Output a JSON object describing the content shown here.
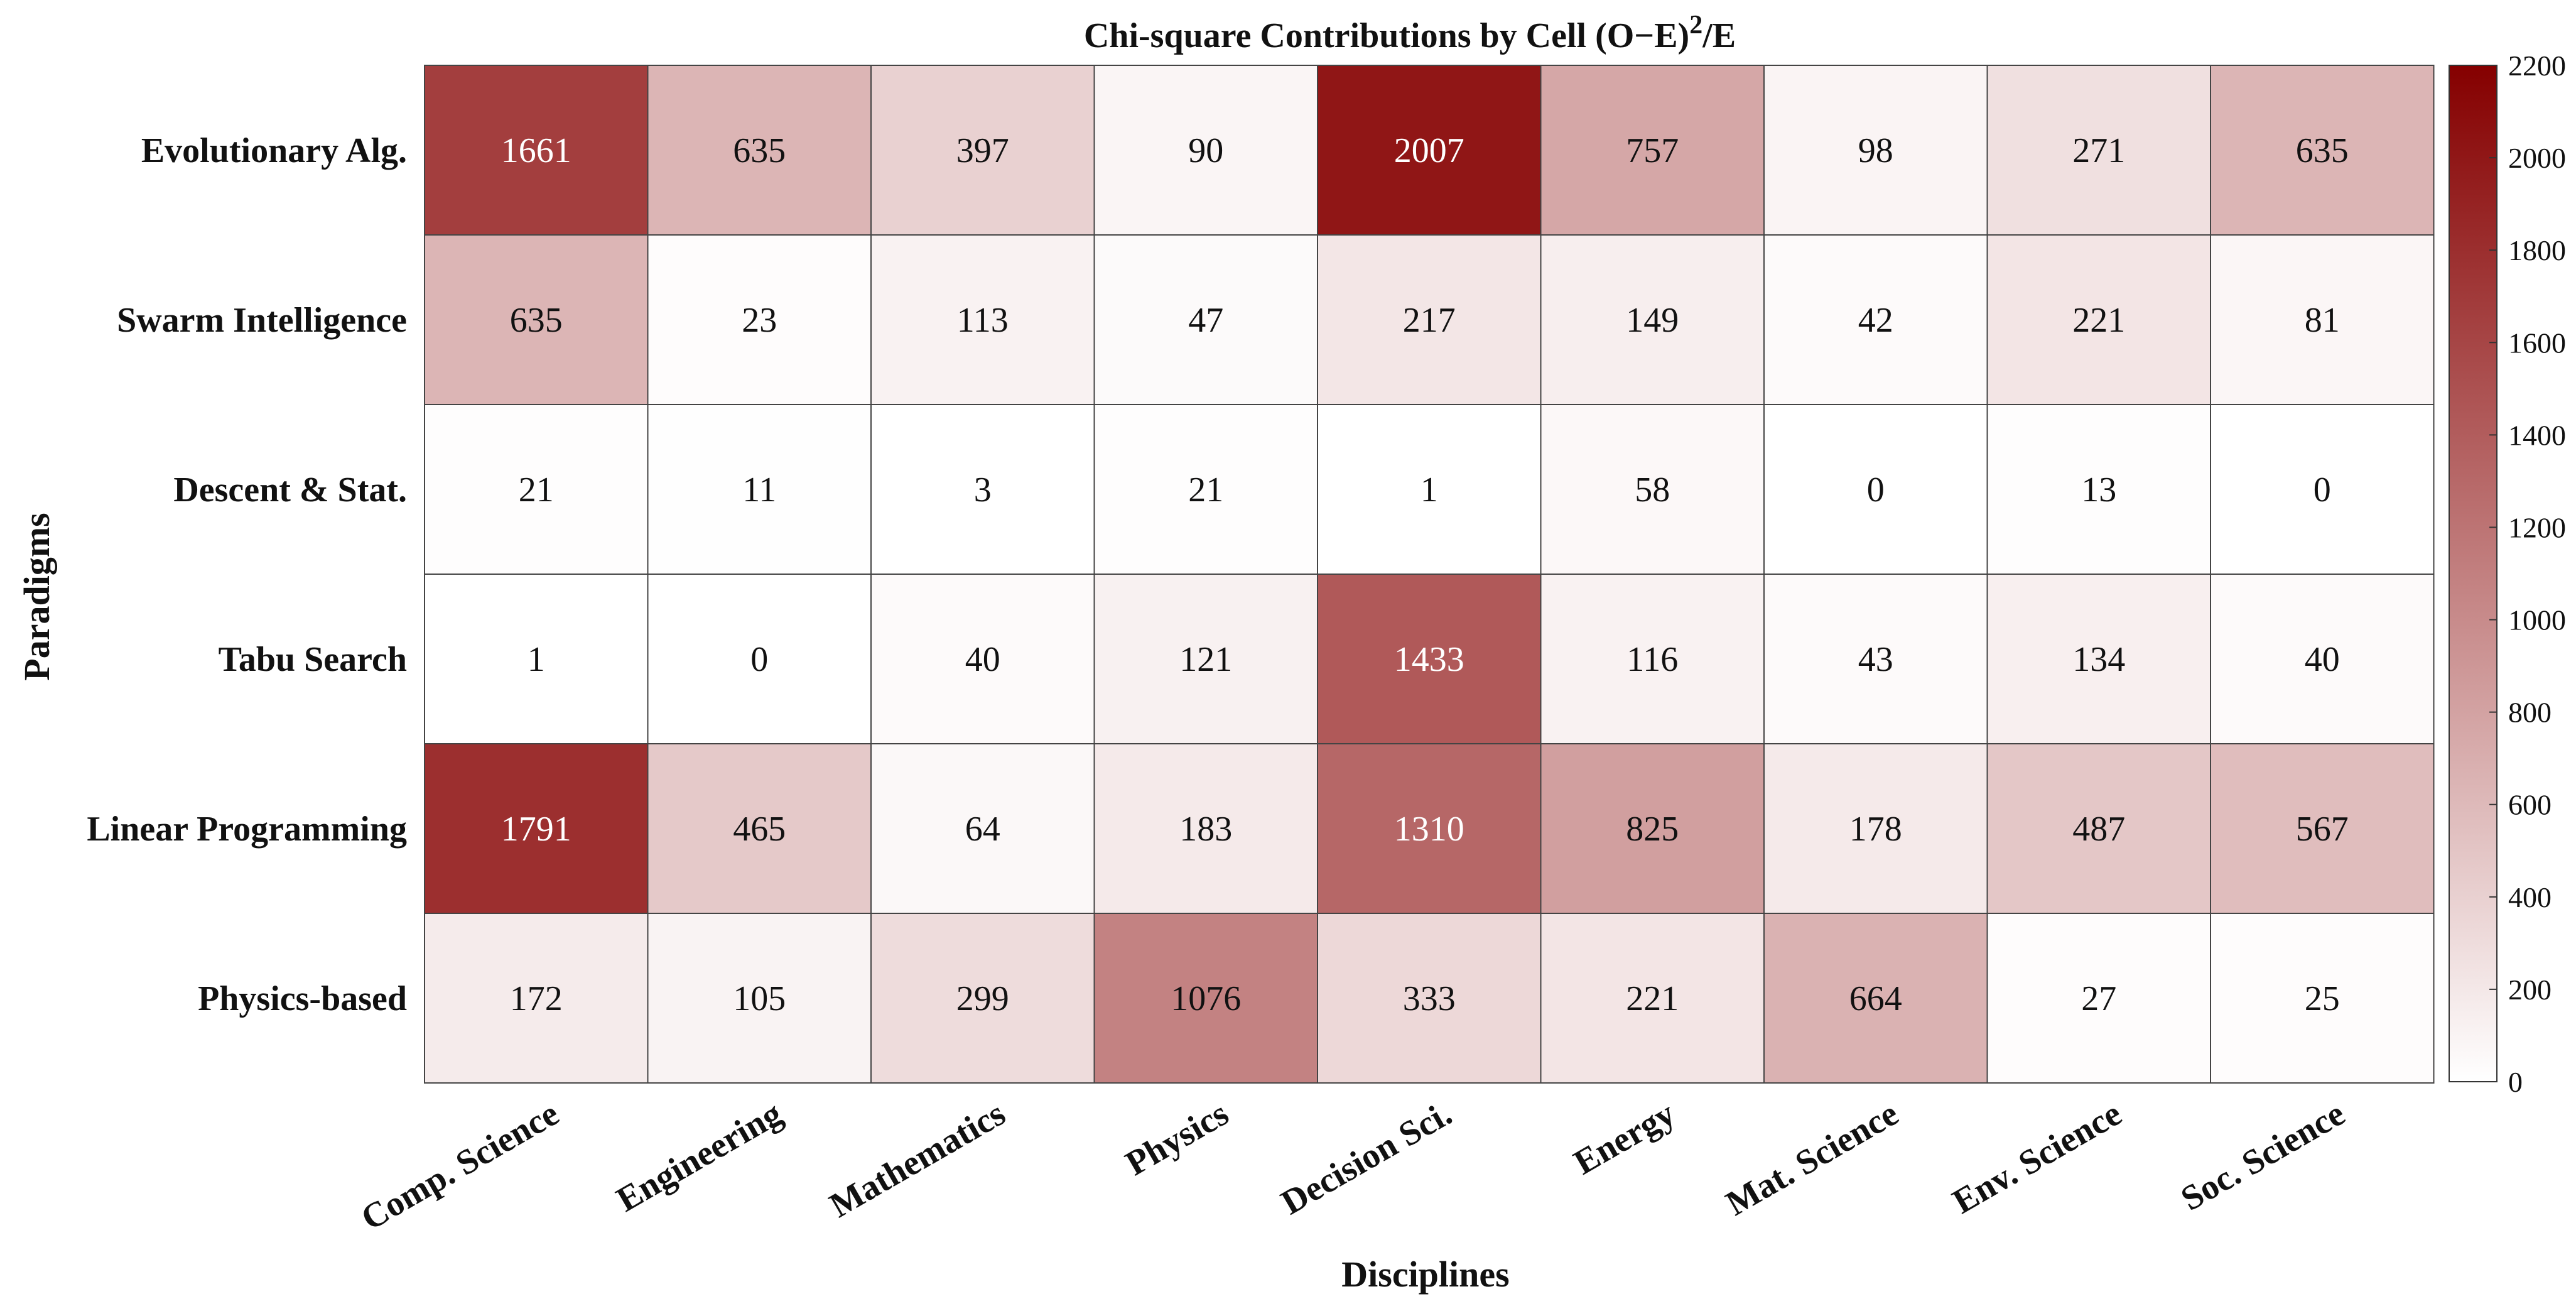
{
  "chart_data": {
    "type": "heatmap",
    "title": "Chi-square Contributions by Cell (O−E)",
    "title_superscript": "2",
    "title_suffix": "/E",
    "xlabel": "Disciplines",
    "ylabel": "Paradigms",
    "rows": [
      "Evolutionary Alg.",
      "Swarm Intelligence",
      "Descent & Stat.",
      "Tabu Search",
      "Linear Programming",
      "Physics-based"
    ],
    "columns": [
      "Comp. Science",
      "Engineering",
      "Mathematics",
      "Physics",
      "Decision Sci.",
      "Energy",
      "Mat. Science",
      "Env. Science",
      "Soc. Science"
    ],
    "values": [
      [
        1661,
        635,
        397,
        90,
        2007,
        757,
        98,
        271,
        635
      ],
      [
        635,
        23,
        113,
        47,
        217,
        149,
        42,
        221,
        81
      ],
      [
        21,
        11,
        3,
        21,
        1,
        58,
        0,
        13,
        0
      ],
      [
        1,
        0,
        40,
        121,
        1433,
        116,
        43,
        134,
        40
      ],
      [
        1791,
        465,
        64,
        183,
        1310,
        825,
        178,
        487,
        567
      ],
      [
        172,
        105,
        299,
        1076,
        333,
        221,
        664,
        27,
        25
      ]
    ],
    "colorbar": {
      "min": 0,
      "max": 2200,
      "ticks": [
        0,
        200,
        400,
        600,
        800,
        1000,
        1200,
        1400,
        1600,
        1800,
        2000,
        2200
      ],
      "colors": {
        "low": "#ffffff",
        "high": "#850000"
      }
    },
    "grid": true,
    "colorbar_position": "right"
  }
}
